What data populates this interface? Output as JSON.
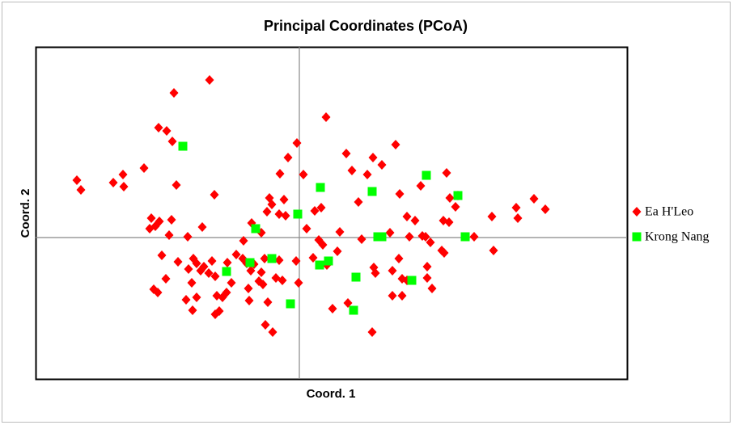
{
  "chart_data": {
    "type": "scatter",
    "title": "Principal Coordinates (PCoA)",
    "xlabel": "Coord. 1",
    "ylabel": "Coord. 2",
    "xlim": [
      -3.26,
      4.05
    ],
    "ylim": [
      -1.75,
      2.36
    ],
    "legend": "right",
    "series": [
      {
        "name": "Ea H'Leo",
        "color": "#ff0000",
        "marker": "diamond",
        "x": [
          -1.11,
          -1.55,
          -1.74,
          -1.64,
          -1.57,
          0.33,
          -0.03,
          1.19,
          0.58,
          0.91,
          1.02,
          -0.14,
          -0.24,
          0.05,
          0.65,
          0.84,
          -1.92,
          -2.18,
          -2.3,
          -2.17,
          -2.75,
          -2.7,
          -1.52,
          -1.05,
          -0.37,
          -0.34,
          -0.19,
          -0.4,
          -0.25,
          -0.17,
          0.27,
          0.19,
          0.73,
          1.24,
          1.5,
          1.82,
          1.86,
          1.96,
          1.93,
          1.78,
          1.85,
          2.68,
          2.9,
          3.04,
          2.7,
          2.38,
          2.16,
          2.4,
          -1.83,
          -1.85,
          -1.73,
          -1.58,
          -1.78,
          -1.2,
          -1.61,
          -1.38,
          -0.59,
          -0.47,
          0.09,
          0.5,
          0.77,
          1.12,
          1.33,
          1.43,
          1.36,
          1.52,
          1.56,
          1.62,
          1.76,
          1.79,
          -0.69,
          -0.78,
          -0.89,
          -0.7,
          -0.56,
          -0.43,
          -1.08,
          -1.31,
          -1.27,
          -1.5,
          -1.7,
          -1.18,
          -1.12,
          -1.22,
          -1.37,
          -1.65,
          -1.8,
          -1.75,
          -1.33,
          -1.04,
          -0.84,
          -0.9,
          -0.95,
          -1.02,
          -1.27,
          -1.4,
          -1.32,
          -1.04,
          -0.99,
          -0.65,
          -0.6,
          -0.5,
          -0.45,
          -0.63,
          -0.62,
          -0.39,
          -0.47,
          -0.29,
          -0.21,
          -0.01,
          -0.25,
          -0.04,
          0.17,
          0.29,
          0.24,
          0.47,
          0.34,
          0.92,
          0.94,
          1.23,
          1.15,
          1.33,
          1.27,
          1.58,
          1.58,
          1.64,
          1.15,
          1.27,
          0.41,
          0.6,
          0.9,
          -0.42,
          -0.33
        ],
        "y": [
          1.95,
          1.79,
          1.36,
          1.32,
          1.19,
          1.49,
          1.17,
          1.15,
          1.04,
          0.99,
          0.9,
          0.99,
          0.79,
          0.78,
          0.83,
          0.78,
          0.86,
          0.78,
          0.68,
          0.63,
          0.71,
          0.59,
          0.65,
          0.53,
          0.49,
          0.41,
          0.47,
          0.32,
          0.29,
          0.27,
          0.37,
          0.33,
          0.44,
          0.54,
          0.64,
          0.8,
          0.49,
          0.52,
          0.38,
          0.21,
          0.19,
          0.37,
          0.48,
          0.35,
          0.24,
          0.26,
          0.01,
          -0.16,
          0.24,
          0.11,
          0.2,
          0.22,
          0.14,
          0.13,
          0.03,
          0.01,
          0.18,
          0.06,
          0.11,
          0.07,
          -0.02,
          0.06,
          0.26,
          0.21,
          0.01,
          0.02,
          0.01,
          -0.06,
          -0.16,
          -0.19,
          -0.04,
          -0.21,
          -0.31,
          -0.26,
          -0.33,
          -0.26,
          -0.29,
          -0.26,
          -0.32,
          -0.3,
          -0.22,
          -0.36,
          -0.44,
          -0.41,
          -0.39,
          -0.51,
          -0.64,
          -0.68,
          -0.56,
          -0.48,
          -0.56,
          -0.68,
          -0.74,
          -0.72,
          -0.74,
          -0.77,
          -0.9,
          -0.95,
          -0.91,
          -0.32,
          -0.41,
          -0.54,
          -0.58,
          -0.63,
          -0.78,
          -0.8,
          -0.43,
          -0.5,
          -0.53,
          -0.56,
          -0.28,
          -0.29,
          -0.25,
          -0.09,
          -0.03,
          -0.17,
          -0.34,
          -0.37,
          -0.44,
          -0.26,
          -0.41,
          -0.53,
          -0.51,
          -0.36,
          -0.5,
          -0.63,
          -0.72,
          -0.72,
          -0.88,
          -0.81,
          -1.17,
          -1.08,
          -1.17
        ]
      },
      {
        "name": "Krong Nang",
        "color": "#00ff00",
        "marker": "square",
        "x": [
          -1.44,
          0.26,
          0.9,
          1.57,
          1.96,
          -0.02,
          -0.54,
          0.97,
          1.02,
          2.05,
          -0.34,
          -0.61,
          -0.9,
          0.25,
          0.36,
          0.7,
          1.39,
          -0.11,
          0.67
        ],
        "y": [
          1.13,
          0.62,
          0.57,
          0.77,
          0.52,
          0.29,
          0.11,
          0.01,
          0.01,
          0.01,
          -0.26,
          -0.31,
          -0.42,
          -0.34,
          -0.29,
          -0.49,
          -0.53,
          -0.82,
          -0.9
        ]
      }
    ]
  }
}
